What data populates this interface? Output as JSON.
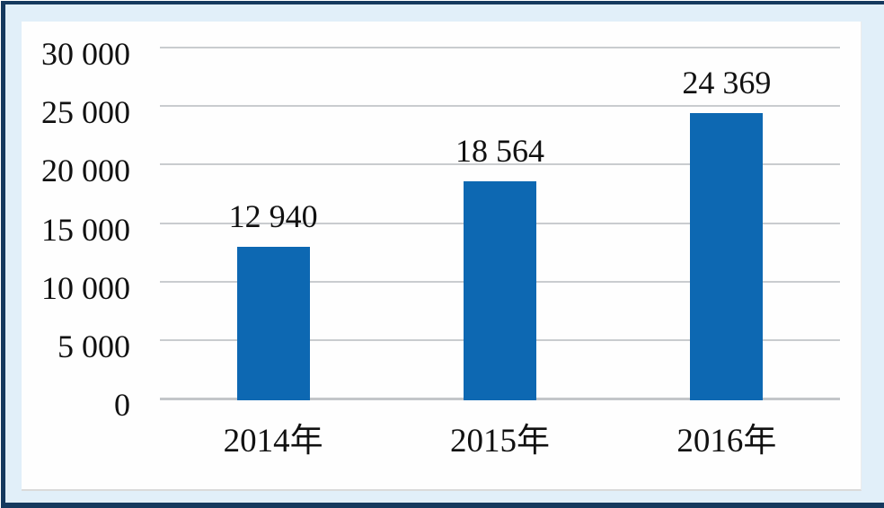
{
  "chart_data": {
    "type": "bar",
    "title": "",
    "categories": [
      "2014年",
      "2015年",
      "2016年"
    ],
    "values": [
      12940,
      18564,
      24369
    ],
    "data_labels": [
      "12 940",
      "18 564",
      "24 369"
    ],
    "y_axis": {
      "min": 0,
      "max": 30000,
      "step": 5000,
      "tick_values": [
        0,
        5000,
        10000,
        15000,
        20000,
        25000,
        30000
      ],
      "tick_labels": [
        "0",
        "5 000",
        "10 000",
        "15 000",
        "20 000",
        "25 000",
        "30 000"
      ]
    },
    "xlabel": "",
    "ylabel": "",
    "legend": "none",
    "grid": "horizontal",
    "colors": {
      "bar": "#0D68B2",
      "gridline": "#C9CCCF",
      "axis_line": "#C3C6C9",
      "text": "#111111",
      "panel_bg": "#FEFEFE",
      "frame_bg": "#E1EFF9",
      "frame_border": "#15395E"
    }
  }
}
